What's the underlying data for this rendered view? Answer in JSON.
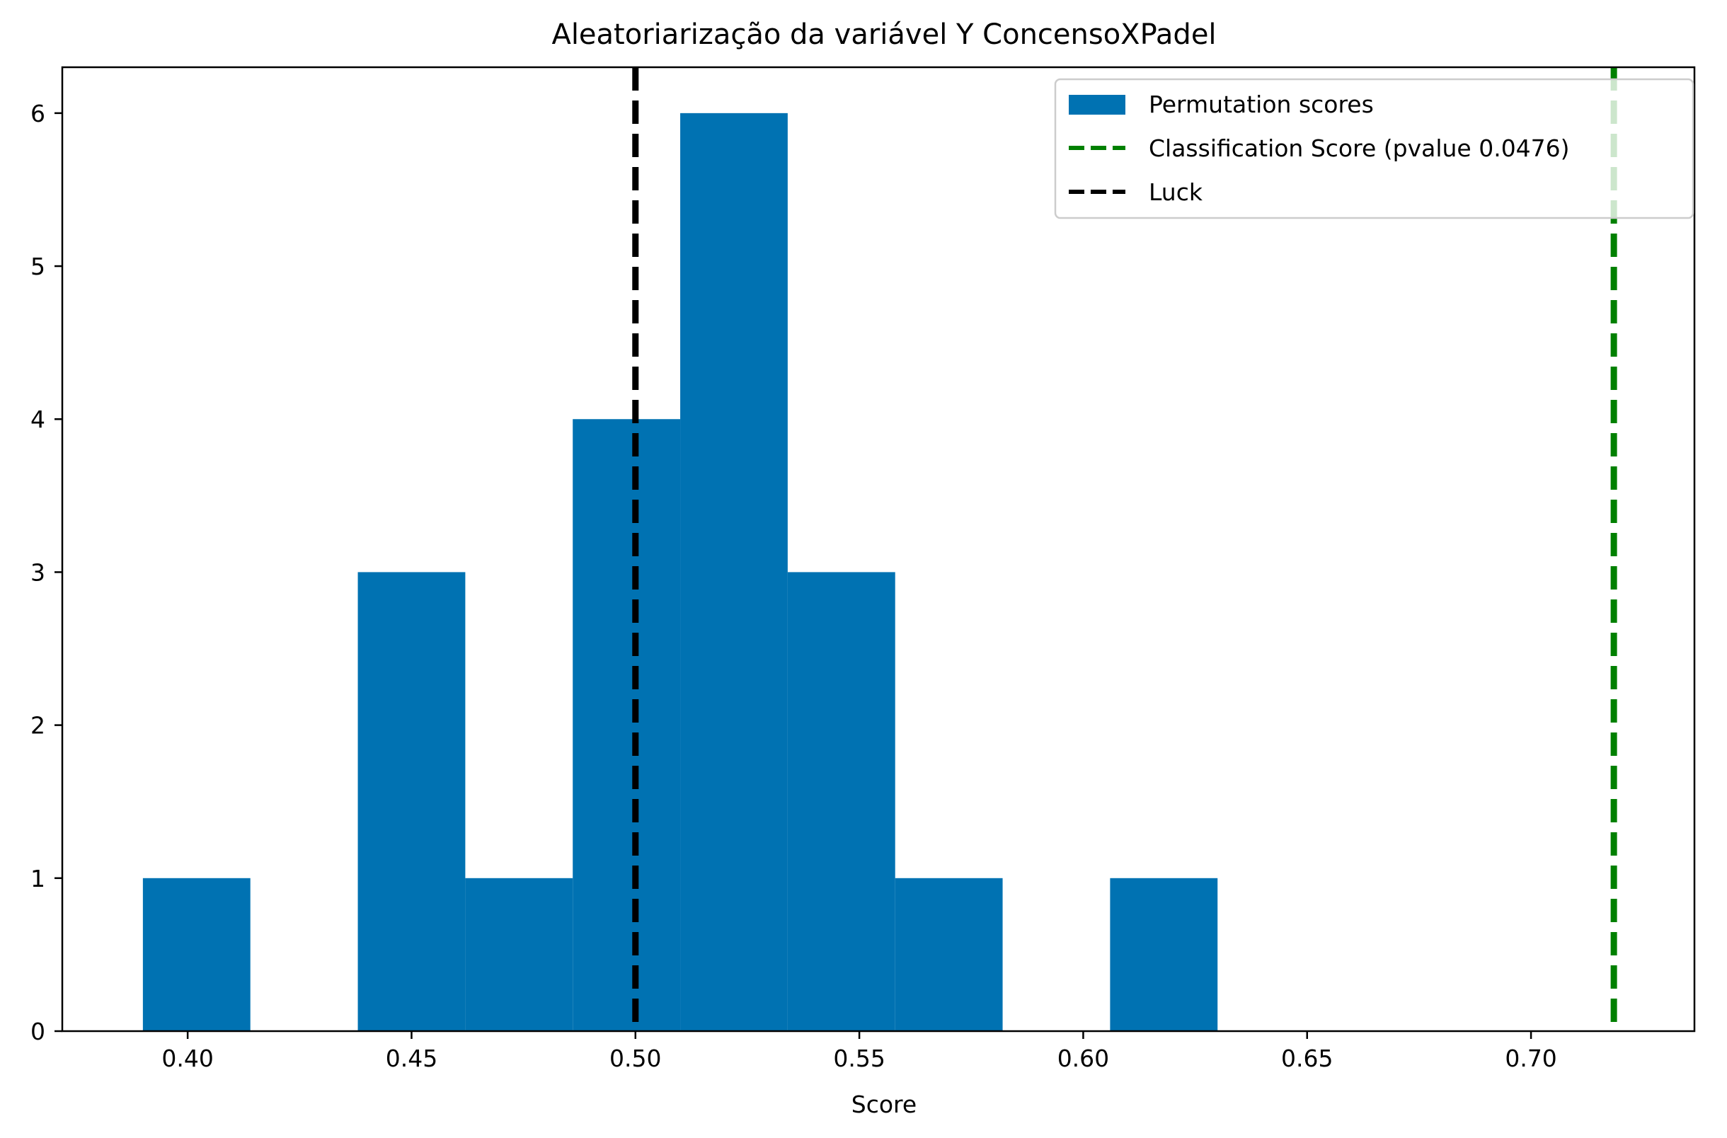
{
  "chart_data": {
    "type": "bar",
    "title": "Aleatoriarização da variável Y ConcensoXPadel",
    "xlabel": "Score",
    "ylabel": "",
    "xlim": [
      0.372,
      0.7365
    ],
    "ylim": [
      0,
      6.3
    ],
    "xticks": [
      0.4,
      0.45,
      0.5,
      0.55,
      0.6,
      0.65,
      0.7
    ],
    "xtick_labels": [
      "0.40",
      "0.45",
      "0.50",
      "0.55",
      "0.60",
      "0.65",
      "0.70"
    ],
    "yticks": [
      0,
      1,
      2,
      3,
      4,
      5,
      6
    ],
    "ytick_labels": [
      "0",
      "1",
      "2",
      "3",
      "4",
      "5",
      "6"
    ],
    "bins": [
      {
        "start": 0.39,
        "end": 0.414,
        "count": 1
      },
      {
        "start": 0.414,
        "end": 0.438,
        "count": 0
      },
      {
        "start": 0.438,
        "end": 0.462,
        "count": 3
      },
      {
        "start": 0.462,
        "end": 0.486,
        "count": 1
      },
      {
        "start": 0.486,
        "end": 0.51,
        "count": 4
      },
      {
        "start": 0.51,
        "end": 0.534,
        "count": 6
      },
      {
        "start": 0.534,
        "end": 0.558,
        "count": 3
      },
      {
        "start": 0.558,
        "end": 0.582,
        "count": 1
      },
      {
        "start": 0.582,
        "end": 0.606,
        "count": 0
      },
      {
        "start": 0.606,
        "end": 0.63,
        "count": 1
      }
    ],
    "vlines": [
      {
        "name": "Classification Score (pvalue 0.0476)",
        "x": 0.7185,
        "color": "#008000",
        "style": "dashed"
      },
      {
        "name": "Luck",
        "x": 0.5,
        "color": "#000000",
        "style": "dashed"
      }
    ],
    "legend": {
      "position": "top-right",
      "entries": [
        {
          "label": "Permutation scores",
          "kind": "patch",
          "color": "#0072B2"
        },
        {
          "label": "Classification Score (pvalue 0.0476)",
          "kind": "dashed-line",
          "color": "#008000"
        },
        {
          "label": "Luck",
          "kind": "dashed-line",
          "color": "#000000"
        }
      ]
    },
    "colors": {
      "bars": "#0072B2",
      "classification_line": "#008000",
      "luck_line": "#000000",
      "axes": "#000000",
      "legend_border": "#cccccc",
      "background": "#ffffff"
    },
    "grid": false
  }
}
